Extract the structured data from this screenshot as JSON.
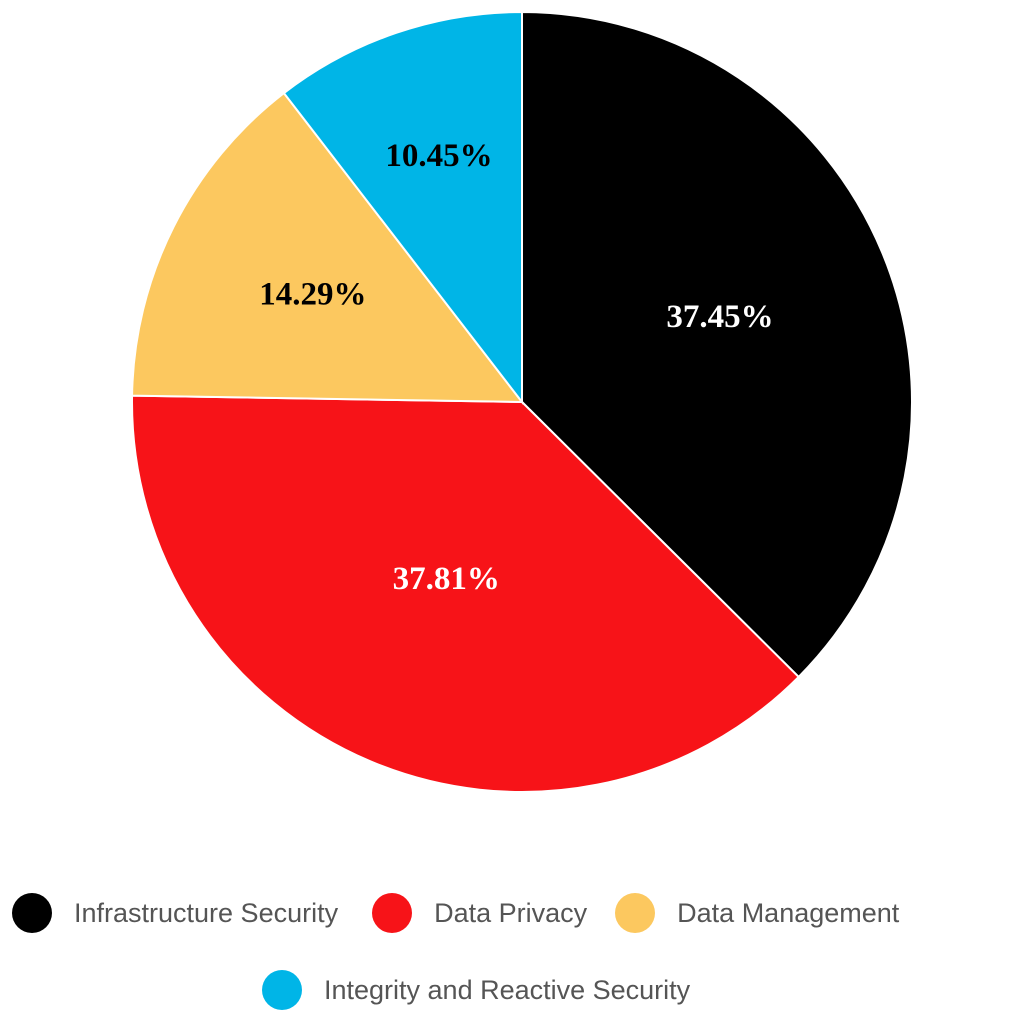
{
  "chart_data": {
    "type": "pie",
    "categories": [
      "Infrastructure Security",
      "Data Privacy",
      "Data Management",
      "Integrity and Reactive Security"
    ],
    "values": [
      37.45,
      37.81,
      14.29,
      10.45
    ],
    "labels": [
      "37.45%",
      "37.81%",
      "14.29%",
      "10.45%"
    ],
    "colors": [
      "#000000",
      "#f71318",
      "#fcc85f",
      "#00b5e7"
    ],
    "label_colors": [
      "#ffffff",
      "#ffffff",
      "#000000",
      "#000000"
    ],
    "start_direction": "top (12 o'clock), clockwise",
    "legend_position": "bottom"
  },
  "legend": [
    {
      "label": "Infrastructure Security",
      "color": "#000000"
    },
    {
      "label": "Data Privacy",
      "color": "#f71318"
    },
    {
      "label": "Data Management",
      "color": "#fcc85f"
    },
    {
      "label": "Integrity and Reactive Security",
      "color": "#00b5e7"
    }
  ]
}
